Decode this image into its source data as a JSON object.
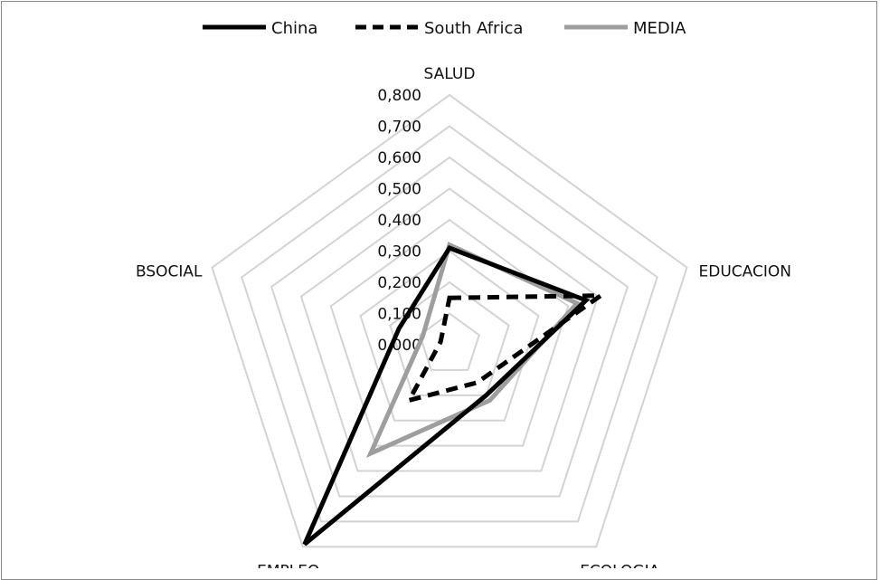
{
  "chart_data": {
    "type": "radar",
    "categories": [
      "SALUD",
      "EDUCACION",
      "ECOLOGIA",
      "EMPLEO",
      "BSOCIAL"
    ],
    "series": [
      {
        "name": "China",
        "values": [
          0.31,
          0.46,
          0.2,
          0.79,
          0.17
        ],
        "color": "#000000",
        "style": "solid"
      },
      {
        "name": "South Africa",
        "values": [
          0.15,
          0.51,
          0.15,
          0.22,
          0.03
        ],
        "color": "#000000",
        "style": "dashed"
      },
      {
        "name": "MEDIA",
        "values": [
          0.32,
          0.43,
          0.22,
          0.43,
          0.09
        ],
        "color": "#9e9e9e",
        "style": "solid"
      }
    ],
    "rlim": [
      0,
      0.8
    ],
    "tick_labels": [
      "0,000",
      "0,100",
      "0,200",
      "0,300",
      "0,400",
      "0,500",
      "0,600",
      "0,700",
      "0,800"
    ],
    "grid": true,
    "legend_position": "top"
  }
}
